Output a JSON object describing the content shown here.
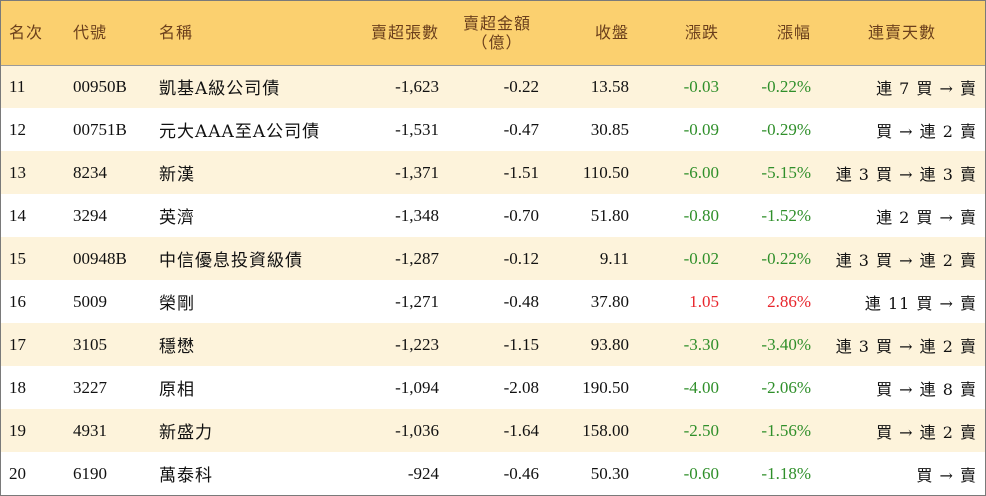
{
  "header": {
    "rank": "名次",
    "code": "代號",
    "name": "名稱",
    "net_sell_lots": "賣超張數",
    "net_sell_amount_line1": "賣超金額",
    "net_sell_amount_line2": "（億）",
    "close": "收盤",
    "change": "漲跌",
    "pct": "漲幅",
    "streak": "連賣天數"
  },
  "colors": {
    "header_bg": "#fbd06f",
    "odd_row_bg": "#fdf3db",
    "up": "#e8252c",
    "down": "#2f8f2a",
    "header_text": "#6b3f1c"
  },
  "rows": [
    {
      "rank": "11",
      "code": "00950B",
      "name": "凱基A級公司債",
      "lots": "-1,623",
      "amount": "-0.22",
      "close": "13.58",
      "change": "-0.03",
      "pct": "-0.22%",
      "dir": "down",
      "streak": "連 7 買 → 賣"
    },
    {
      "rank": "12",
      "code": "00751B",
      "name": "元大AAA至A公司債",
      "lots": "-1,531",
      "amount": "-0.47",
      "close": "30.85",
      "change": "-0.09",
      "pct": "-0.29%",
      "dir": "down",
      "streak": "買 → 連 2 賣"
    },
    {
      "rank": "13",
      "code": "8234",
      "name": "新漢",
      "lots": "-1,371",
      "amount": "-1.51",
      "close": "110.50",
      "change": "-6.00",
      "pct": "-5.15%",
      "dir": "down",
      "streak": "連 3 買 → 連 3 賣"
    },
    {
      "rank": "14",
      "code": "3294",
      "name": "英濟",
      "lots": "-1,348",
      "amount": "-0.70",
      "close": "51.80",
      "change": "-0.80",
      "pct": "-1.52%",
      "dir": "down",
      "streak": "連 2 買 → 賣"
    },
    {
      "rank": "15",
      "code": "00948B",
      "name": "中信優息投資級債",
      "lots": "-1,287",
      "amount": "-0.12",
      "close": "9.11",
      "change": "-0.02",
      "pct": "-0.22%",
      "dir": "down",
      "streak": "連 3 買 → 連 2 賣"
    },
    {
      "rank": "16",
      "code": "5009",
      "name": "榮剛",
      "lots": "-1,271",
      "amount": "-0.48",
      "close": "37.80",
      "change": "1.05",
      "pct": "2.86%",
      "dir": "up",
      "streak": "連 11 買 → 賣"
    },
    {
      "rank": "17",
      "code": "3105",
      "name": "穩懋",
      "lots": "-1,223",
      "amount": "-1.15",
      "close": "93.80",
      "change": "-3.30",
      "pct": "-3.40%",
      "dir": "down",
      "streak": "連 3 買 → 連 2 賣"
    },
    {
      "rank": "18",
      "code": "3227",
      "name": "原相",
      "lots": "-1,094",
      "amount": "-2.08",
      "close": "190.50",
      "change": "-4.00",
      "pct": "-2.06%",
      "dir": "down",
      "streak": "買 → 連 8 賣"
    },
    {
      "rank": "19",
      "code": "4931",
      "name": "新盛力",
      "lots": "-1,036",
      "amount": "-1.64",
      "close": "158.00",
      "change": "-2.50",
      "pct": "-1.56%",
      "dir": "down",
      "streak": "買 → 連 2 賣"
    },
    {
      "rank": "20",
      "code": "6190",
      "name": "萬泰科",
      "lots": "-924",
      "amount": "-0.46",
      "close": "50.30",
      "change": "-0.60",
      "pct": "-1.18%",
      "dir": "down",
      "streak": "買 → 賣"
    }
  ]
}
